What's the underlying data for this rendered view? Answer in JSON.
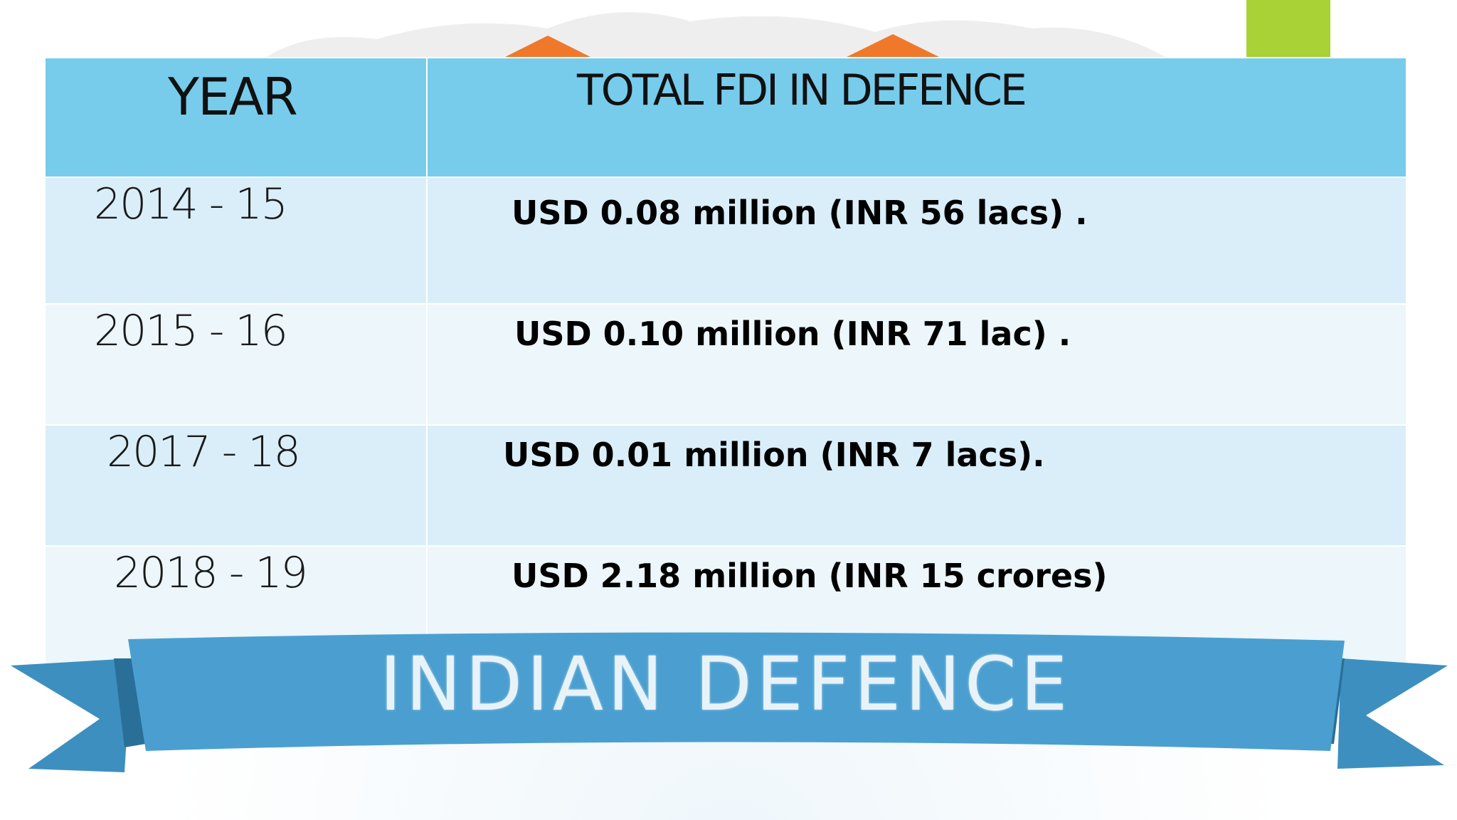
{
  "colors": {
    "header_blue": "#77ccec",
    "row_light_blue": "#d9eef8",
    "row_pale_blue": "#ecf6fb",
    "banner_blue": "#4a9fd0",
    "accent_green": "#a8d235",
    "mountain_orange": "#f0782a"
  },
  "table": {
    "header": {
      "year": "YEAR",
      "total": "TOTAL FDI IN DEFENCE"
    },
    "rows": [
      {
        "year": "2014 - 15",
        "value": "USD 0.08 million (INR 56 lacs) ."
      },
      {
        "year": "2015 - 16",
        "value": "USD 0.10 million (INR 71 lac) ."
      },
      {
        "year": "2017 - 18",
        "value": "USD 0.01 million (INR 7 lacs)."
      },
      {
        "year": "2018 - 19",
        "value": "USD 2.18 million (INR 15 crores)"
      }
    ]
  },
  "banner": {
    "text": "INDIAN DEFENCE"
  }
}
